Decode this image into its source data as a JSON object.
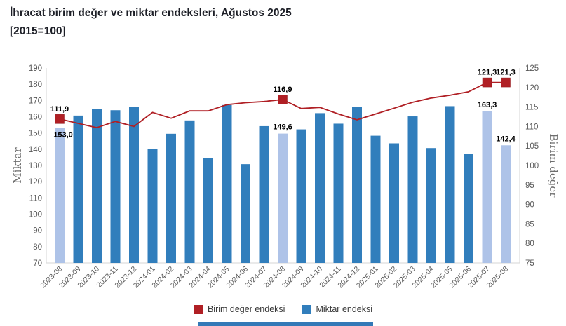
{
  "chart_data": {
    "type": "bar+line",
    "title": "İhracat birim değer ve miktar endeksleri, Ağustos 2025",
    "subtitle": "[2015=100]",
    "categories": [
      "2023-08",
      "2023-09",
      "2023-10",
      "2023-11",
      "2023-12",
      "2024-01",
      "2024-02",
      "2024-03",
      "2024-04",
      "2024-05",
      "2024-06",
      "2024-07",
      "2024-08",
      "2024-09",
      "2024-10",
      "2024-11",
      "2024-12",
      "2025-01",
      "2025-02",
      "2025-03",
      "2025-04",
      "2025-05",
      "2025-06",
      "2025-07",
      "2025-08"
    ],
    "series": [
      {
        "name": "Miktar endeksi",
        "type": "bar",
        "axis": "left",
        "values": [
          153.0,
          160.7,
          164.8,
          164.0,
          166.2,
          140.3,
          149.5,
          157.7,
          134.7,
          167.2,
          130.8,
          154.2,
          149.6,
          152.2,
          162.2,
          155.7,
          166.2,
          148.3,
          143.6,
          160.2,
          140.7,
          166.5,
          137.3,
          163.3,
          142.4
        ]
      },
      {
        "name": "Birim değer endeksi",
        "type": "line",
        "axis": "right",
        "values": [
          111.9,
          110.8,
          109.7,
          111.3,
          110.0,
          113.6,
          112.1,
          114.0,
          114.0,
          115.6,
          116.1,
          116.4,
          116.9,
          114.6,
          114.9,
          113.2,
          111.7,
          113.2,
          114.7,
          116.2,
          117.3,
          118.0,
          118.9,
          121.3,
          121.3
        ]
      }
    ],
    "emphasized_categories": [
      "2023-08",
      "2024-08",
      "2025-07",
      "2025-08"
    ],
    "point_labels": [
      {
        "series": "line",
        "category": "2023-08",
        "text": "111,9"
      },
      {
        "series": "bar",
        "category": "2023-08",
        "text": "153,0",
        "position": "below-top"
      },
      {
        "series": "line",
        "category": "2024-08",
        "text": "116,9"
      },
      {
        "series": "bar",
        "category": "2024-08",
        "text": "149,6"
      },
      {
        "series": "line",
        "category": "2025-07",
        "text": "121,3"
      },
      {
        "series": "line",
        "category": "2025-08",
        "text": "121,3"
      },
      {
        "series": "bar",
        "category": "2025-07",
        "text": "163,3"
      },
      {
        "series": "bar",
        "category": "2025-08",
        "text": "142,4"
      }
    ],
    "left_axis": {
      "label": "Miktar",
      "min": 70,
      "max": 190,
      "tick_step": 10
    },
    "right_axis": {
      "label": "Birim değer",
      "min": 75,
      "max": 125,
      "tick_step": 5
    },
    "grid": "off",
    "legend_position": "bottom",
    "legend": [
      {
        "label": "Birim değer endeksi",
        "color": "#B01F24"
      },
      {
        "label": "Miktar endeksi",
        "color": "#317EBC"
      }
    ],
    "colors": {
      "bar": "#317EBC",
      "bar_highlight": "#AEC3E8",
      "line": "#B01F24",
      "axis_text": "#595959",
      "axis_title": "#6E6E6E",
      "plot_border": "#D6D6D6",
      "point_label_text": "#000000",
      "title_text": "#1C1E26",
      "footer_strip": "#3379B7"
    }
  }
}
